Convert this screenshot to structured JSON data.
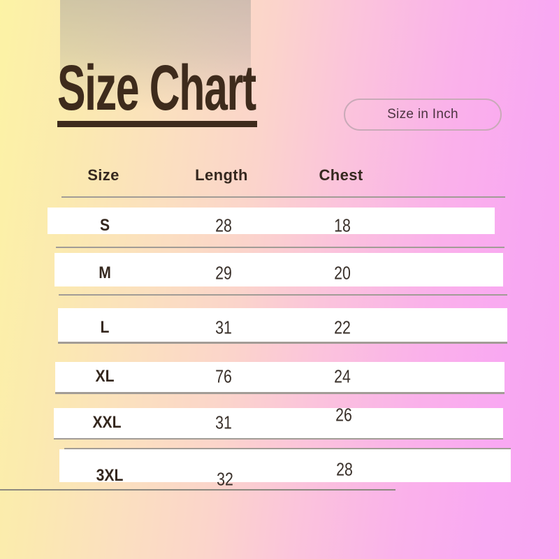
{
  "page_title": "Size Chart",
  "unit_badge": {
    "label": "Size in Inch"
  },
  "chart_data": {
    "type": "table",
    "title": "Size Chart",
    "unit": "Size in Inch",
    "columns": [
      "Size",
      "Length",
      "Chest"
    ],
    "rows": [
      [
        "S",
        28,
        18
      ],
      [
        "M",
        29,
        20
      ],
      [
        "L",
        31,
        22
      ],
      [
        "XL",
        76,
        24
      ],
      [
        "XXL",
        31,
        26
      ],
      [
        "3XL",
        32,
        28
      ]
    ]
  },
  "colors": {
    "background_left": "#fcf3a5",
    "background_right": "#f9a5f3",
    "title_text": "#3e2b1c",
    "row_band": "#ffffff",
    "divider": "#a29c96",
    "pill_border": "#c9aab8",
    "pill_text": "#4c3440"
  }
}
